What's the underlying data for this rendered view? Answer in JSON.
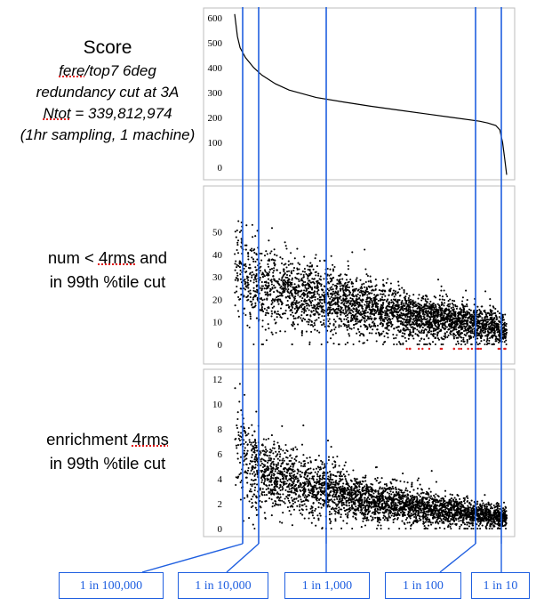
{
  "labels": {
    "score": {
      "title": "Score",
      "line1_a": "fere",
      "line1_b": "/top7 6deg",
      "line2": "redundancy cut at 3A",
      "line3_a": "Ntot",
      "line3_b": " = 339,812,974",
      "line4": "(1hr sampling, 1 machine)"
    },
    "num": {
      "line1_a": "num < ",
      "line1_b": "4rms",
      "line1_c": " and",
      "line2": "in 99th %tile cut"
    },
    "enrichment": {
      "line1_a": "enrichment ",
      "line1_b": "4rms",
      "line2": "in 99th %tile cut"
    }
  },
  "colors": {
    "cutline": "#1f5fe0",
    "points": "#000000",
    "highlight": "#e02020",
    "frame": "#bdbdbd"
  },
  "chart_data": [
    {
      "type": "line",
      "name": "score-panel",
      "title": "Score",
      "ylim": [
        0,
        600
      ],
      "yticks": [
        0,
        100,
        200,
        300,
        400,
        500,
        600
      ],
      "xlim": [
        0,
        1
      ],
      "series": [
        {
          "name": "score (sorted)",
          "x": [
            0.0,
            0.01,
            0.02,
            0.04,
            0.07,
            0.1,
            0.15,
            0.2,
            0.3,
            0.4,
            0.5,
            0.6,
            0.7,
            0.8,
            0.9,
            0.93,
            0.96,
            0.975,
            0.985,
            0.992,
            1.0
          ],
          "values": [
            615,
            525,
            480,
            440,
            400,
            370,
            335,
            310,
            280,
            262,
            245,
            230,
            215,
            200,
            185,
            178,
            168,
            150,
            100,
            40,
            -30
          ]
        }
      ]
    },
    {
      "type": "scatter",
      "name": "num-4rms-panel",
      "title": "num < 4rms and in 99th %tile cut",
      "ylim": [
        0,
        55
      ],
      "yticks": [
        0,
        10,
        20,
        30,
        40,
        50
      ],
      "trend": {
        "x": [
          0.0,
          0.05,
          0.2,
          0.5,
          1.0
        ],
        "y": [
          40,
          28,
          23,
          16,
          7
        ]
      },
      "points_approx": 3500
    },
    {
      "type": "scatter",
      "name": "enrichment-panel",
      "title": "enrichment 4rms in 99th %tile cut",
      "ylim": [
        0,
        12
      ],
      "yticks": [
        0,
        2,
        4,
        6,
        8,
        10,
        12
      ],
      "trend": {
        "x": [
          0.0,
          0.05,
          0.2,
          0.5,
          1.0
        ],
        "y": [
          7,
          5,
          3.8,
          2.2,
          0.9
        ]
      },
      "points_approx": 3500
    }
  ],
  "cutlines": [
    "1 in 100,000",
    "1 in 10,000",
    "1 in 1,000",
    "1 in 100",
    "1 in 10"
  ]
}
